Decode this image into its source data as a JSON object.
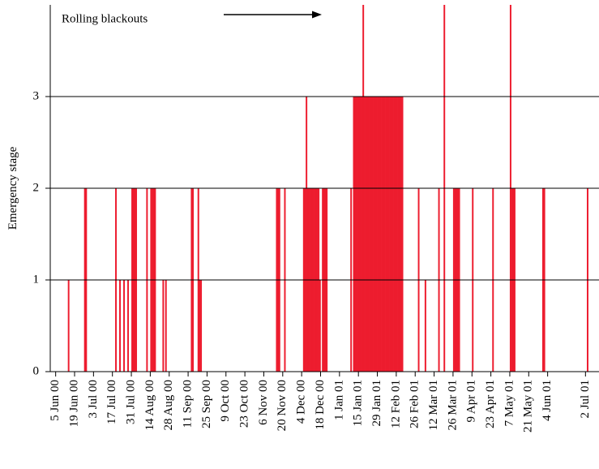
{
  "chart_data": {
    "type": "bar",
    "y_label": "Emergency stage",
    "annotation": "Rolling blackouts",
    "color": "#ed1c2e",
    "grid": true,
    "xlim": [
      "2000-06-01",
      "2001-07-12"
    ],
    "ylim": [
      0,
      4
    ],
    "yticks": [
      0,
      1,
      2,
      3
    ],
    "xticks": [
      {
        "value": "2000-06-05",
        "label": "5 Jun 00"
      },
      {
        "value": "2000-06-19",
        "label": "19 Jun 00"
      },
      {
        "value": "2000-07-03",
        "label": "3 Jul 00"
      },
      {
        "value": "2000-07-17",
        "label": "17 Jul 00"
      },
      {
        "value": "2000-07-31",
        "label": "31 Jul 00"
      },
      {
        "value": "2000-08-14",
        "label": "14 Aug 00"
      },
      {
        "value": "2000-08-28",
        "label": "28 Aug 00"
      },
      {
        "value": "2000-09-11",
        "label": "11 Sep 00"
      },
      {
        "value": "2000-09-25",
        "label": "25 Sep 00"
      },
      {
        "value": "2000-10-09",
        "label": "9 Oct 00"
      },
      {
        "value": "2000-10-23",
        "label": "23 Oct 00"
      },
      {
        "value": "2000-11-06",
        "label": "6 Nov 00"
      },
      {
        "value": "2000-11-20",
        "label": "20 Nov 00"
      },
      {
        "value": "2000-12-04",
        "label": "4 Dec 00"
      },
      {
        "value": "2000-12-18",
        "label": "18 Dec 00"
      },
      {
        "value": "2001-01-01",
        "label": "1 Jan 01"
      },
      {
        "value": "2001-01-15",
        "label": "15 Jan 01"
      },
      {
        "value": "2001-01-29",
        "label": "29 Jan 01"
      },
      {
        "value": "2001-02-12",
        "label": "12 Feb 01"
      },
      {
        "value": "2001-02-26",
        "label": "26 Feb 01"
      },
      {
        "value": "2001-03-12",
        "label": "12 Mar 01"
      },
      {
        "value": "2001-03-26",
        "label": "26 Mar 01"
      },
      {
        "value": "2001-04-09",
        "label": "9 Apr 01"
      },
      {
        "value": "2001-04-23",
        "label": "23 Apr 01"
      },
      {
        "value": "2001-05-07",
        "label": "7 May 01"
      },
      {
        "value": "2001-05-21",
        "label": "21 May 01"
      },
      {
        "value": "2001-06-04",
        "label": "4 Jun 01"
      },
      {
        "value": "2001-07-02",
        "label": "2 Jul 01"
      }
    ],
    "x": [
      "2000-06-14",
      "2000-06-26",
      "2000-06-27",
      "2000-07-19",
      "2000-07-22",
      "2000-07-25",
      "2000-07-28",
      "2000-07-31",
      "2000-08-01",
      "2000-08-02",
      "2000-08-03",
      "2000-08-11",
      "2000-08-14",
      "2000-08-15",
      "2000-08-16",
      "2000-08-17",
      "2000-08-23",
      "2000-08-25",
      "2000-09-13",
      "2000-09-14",
      "2000-09-18",
      "2000-09-19",
      "2000-09-20",
      "2000-11-15",
      "2000-11-16",
      "2000-11-17",
      "2000-11-21",
      "2000-12-05",
      "2000-12-06",
      "2000-12-07",
      "2000-12-08",
      "2000-12-09",
      "2000-12-10",
      "2000-12-11",
      "2000-12-12",
      "2000-12-13",
      "2000-12-14",
      "2000-12-15",
      "2000-12-16",
      "2000-12-17",
      "2000-12-19",
      "2000-12-20",
      "2000-12-21",
      "2000-12-22",
      "2001-01-09",
      "2001-01-11",
      "2001-01-12",
      "2001-01-13",
      "2001-01-14",
      "2001-01-15",
      "2001-01-16",
      "2001-01-17",
      "2001-01-18",
      "2001-01-19",
      "2001-01-20",
      "2001-01-21",
      "2001-01-22",
      "2001-01-23",
      "2001-01-24",
      "2001-01-25",
      "2001-01-26",
      "2001-01-27",
      "2001-01-28",
      "2001-01-29",
      "2001-01-30",
      "2001-01-31",
      "2001-02-01",
      "2001-02-02",
      "2001-02-03",
      "2001-02-04",
      "2001-02-05",
      "2001-02-06",
      "2001-02-07",
      "2001-02-08",
      "2001-02-09",
      "2001-02-10",
      "2001-02-11",
      "2001-02-12",
      "2001-02-13",
      "2001-02-14",
      "2001-02-15",
      "2001-02-16",
      "2001-02-28",
      "2001-03-05",
      "2001-03-15",
      "2001-03-19",
      "2001-03-26",
      "2001-03-27",
      "2001-03-28",
      "2001-03-29",
      "2001-03-30",
      "2001-04-09",
      "2001-04-24",
      "2001-05-07",
      "2001-05-08",
      "2001-05-09",
      "2001-05-10",
      "2001-05-31",
      "2001-06-01",
      "2001-07-03"
    ],
    "values": [
      1,
      2,
      2,
      2,
      1,
      1,
      1,
      2,
      2,
      2,
      2,
      2,
      2,
      2,
      2,
      2,
      1,
      1,
      2,
      2,
      2,
      1,
      1,
      2,
      2,
      2,
      2,
      2,
      2,
      3,
      2,
      2,
      2,
      2,
      2,
      2,
      2,
      2,
      2,
      1,
      2,
      2,
      2,
      2,
      2,
      3,
      3,
      3,
      3,
      3,
      3,
      3,
      4,
      3,
      3,
      3,
      3,
      3,
      3,
      3,
      3,
      3,
      3,
      3,
      3,
      3,
      3,
      3,
      3,
      3,
      3,
      3,
      3,
      3,
      3,
      3,
      3,
      3,
      3,
      3,
      3,
      3,
      2,
      1,
      2,
      4,
      2,
      2,
      2,
      2,
      2,
      2,
      2,
      4,
      2,
      2,
      2,
      2,
      2,
      2
    ]
  }
}
